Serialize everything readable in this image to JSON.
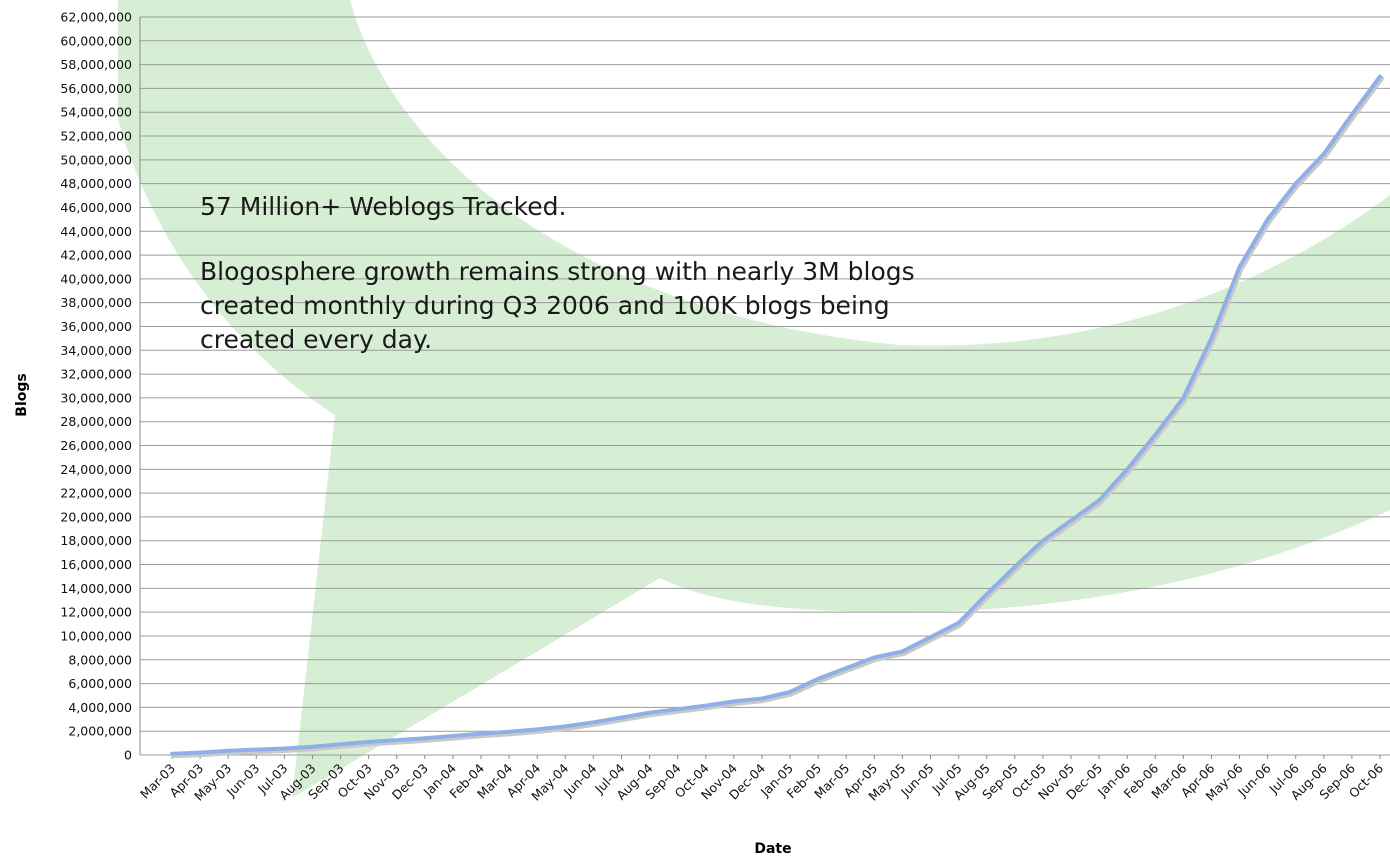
{
  "chart_data": {
    "type": "line",
    "xlabel": "Date",
    "ylabel": "Blogs",
    "ylim": [
      0,
      62000000
    ],
    "y_tick_step": 2000000,
    "grid": true,
    "categories": [
      "Mar-03",
      "Apr-03",
      "May-03",
      "Jun-03",
      "Jul-03",
      "Aug-03",
      "Sep-03",
      "Oct-03",
      "Nov-03",
      "Dec-03",
      "Jan-04",
      "Feb-04",
      "Mar-04",
      "Apr-04",
      "May-04",
      "Jun-04",
      "Jul-04",
      "Aug-04",
      "Sep-04",
      "Oct-04",
      "Nov-04",
      "Dec-04",
      "Jan-05",
      "Feb-05",
      "Mar-05",
      "Apr-05",
      "May-05",
      "Jun-05",
      "Jul-05",
      "Aug-05",
      "Sep-05",
      "Oct-05",
      "Nov-05",
      "Dec-05",
      "Jan-06",
      "Feb-06",
      "Mar-06",
      "Apr-06",
      "May-06",
      "Jun-06",
      "Jul-06",
      "Aug-06",
      "Sep-06",
      "Oct-06"
    ],
    "series": [
      {
        "color": "#8fb0e6",
        "values": [
          100000,
          200000,
          350000,
          450000,
          550000,
          700000,
          900000,
          1100000,
          1250000,
          1400000,
          1600000,
          1800000,
          1950000,
          2150000,
          2400000,
          2750000,
          3150000,
          3550000,
          3850000,
          4150000,
          4500000,
          4750000,
          5300000,
          6400000,
          7300000,
          8200000,
          8700000,
          9900000,
          11100000,
          13500000,
          15800000,
          18000000,
          19700000,
          21400000,
          24000000,
          26900000,
          30000000,
          35000000,
          41000000,
          45000000,
          48000000,
          50500000,
          53800000,
          57000000
        ]
      }
    ],
    "annotations": {
      "heading": "57 Million+ Weblogs Tracked.",
      "body": "Blogosphere growth remains strong with nearly 3M blogs created monthly during Q3 2006 and 100K blogs being created every day."
    },
    "watermark_color": "#d6efd4"
  }
}
